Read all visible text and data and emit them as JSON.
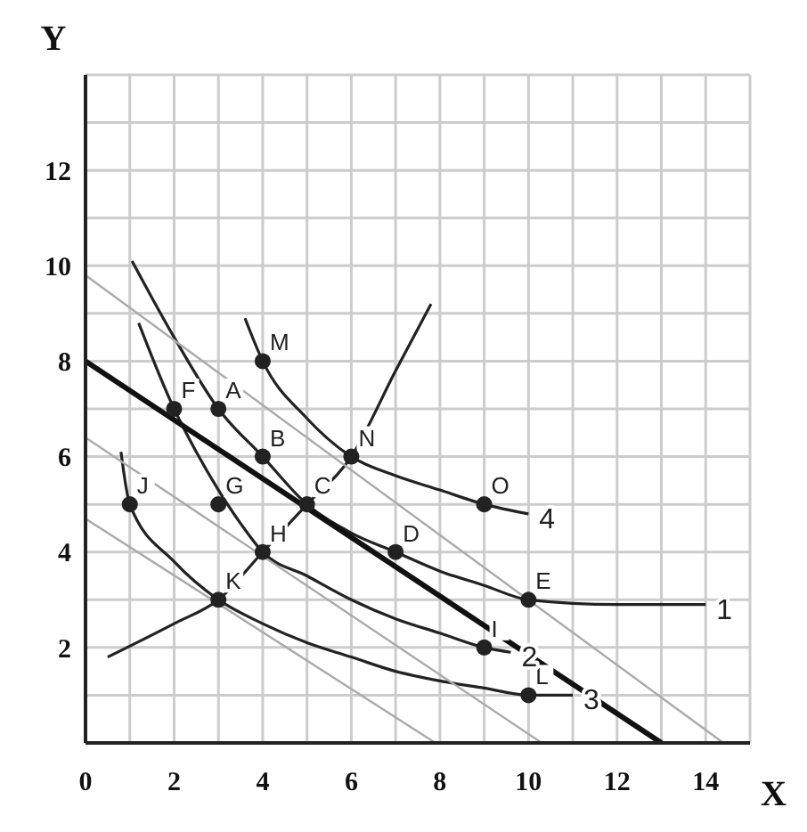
{
  "chart_data": {
    "type": "line",
    "xlabel": "X",
    "ylabel": "Y",
    "xlim": [
      0,
      15
    ],
    "ylim": [
      0,
      14
    ],
    "xticks": [
      0,
      {
        "value": 1,
        "label": null
      },
      2,
      {
        "value": 3,
        "label": null
      },
      4,
      {
        "value": 5,
        "label": null
      },
      6,
      {
        "value": 7,
        "label": null
      },
      8,
      {
        "value": 9,
        "label": null
      },
      10,
      {
        "value": 11,
        "label": null
      },
      12,
      {
        "value": 13,
        "label": null
      },
      14,
      {
        "value": 15,
        "label": null
      }
    ],
    "yticks": [
      {
        "value": 0,
        "label": null
      },
      {
        "value": 1,
        "label": null
      },
      2,
      {
        "value": 3,
        "label": null
      },
      4,
      {
        "value": 5,
        "label": null
      },
      6,
      {
        "value": 7,
        "label": null
      },
      8,
      {
        "value": 9,
        "label": null
      },
      10,
      {
        "value": 11,
        "label": null
      },
      12,
      {
        "value": 13,
        "label": null
      },
      {
        "value": 14,
        "label": null
      }
    ],
    "grid": true,
    "legend": false,
    "marker": "none",
    "line_style": "solid",
    "tick_labels": "xy",
    "series": [
      {
        "name": "1",
        "color": "#222222",
        "x": [
          1.05,
          2,
          3,
          4,
          5,
          6,
          7,
          8,
          9,
          10,
          12,
          14
        ],
        "values": [
          10.1,
          8.5,
          7,
          6,
          5,
          4.4,
          4,
          3.6,
          3.3,
          3,
          2.9,
          2.9
        ]
      },
      {
        "name": "2",
        "color": "#222222",
        "x": [
          1.2,
          2,
          2.5,
          3,
          3.5,
          4,
          5,
          6,
          7,
          8,
          9,
          9.6
        ],
        "values": [
          8.8,
          7,
          6.1,
          5.3,
          4.6,
          4,
          3.5,
          3,
          2.6,
          2.3,
          2,
          1.9
        ]
      },
      {
        "name": "3",
        "color": "#222222",
        "x": [
          0.8,
          1,
          2,
          3,
          4,
          5,
          6,
          7,
          8,
          9,
          10,
          11
        ],
        "values": [
          6.1,
          5,
          3.8,
          3,
          2.5,
          2.1,
          1.8,
          1.5,
          1.3,
          1.15,
          1,
          1
        ]
      },
      {
        "name": "4",
        "color": "#222222",
        "x": [
          3.6,
          4,
          5,
          6,
          7,
          8,
          9,
          10
        ],
        "values": [
          8.9,
          8,
          6.8,
          6,
          5.6,
          5.3,
          5,
          4.8
        ]
      },
      {
        "color": "#222222",
        "x": [
          0.5,
          2,
          3,
          4,
          5,
          6,
          7,
          7.8
        ],
        "values": [
          1.8,
          2.5,
          3,
          4,
          5,
          6,
          7.8,
          9.2
        ]
      },
      {
        "color": "#111111",
        "x": [
          0,
          13
        ],
        "values": [
          8,
          0
        ]
      },
      {
        "color": "#aaaaaa",
        "x": [
          0,
          14.4
        ],
        "values": [
          9.8,
          0
        ]
      },
      {
        "color": "#aaaaaa",
        "x": [
          0,
          10.3
        ],
        "values": [
          6.4,
          0
        ]
      },
      {
        "color": "#aaaaaa",
        "x": [
          0,
          7.9
        ],
        "values": [
          4.7,
          0
        ]
      },
      {
        "type": "scatter",
        "marker": "circle",
        "color": "#222222",
        "x": [
          3,
          4,
          5,
          7,
          10,
          2,
          3,
          4,
          9,
          1,
          3,
          10,
          4,
          6,
          9
        ],
        "values": [
          7,
          6,
          5,
          4,
          3,
          7,
          5,
          4,
          2,
          5,
          3,
          1,
          8,
          6,
          5
        ]
      }
    ],
    "annotations": [
      {
        "text": "A",
        "x": 3,
        "y": 7
      },
      {
        "text": "B",
        "x": 4,
        "y": 6
      },
      {
        "text": "C",
        "x": 5,
        "y": 5
      },
      {
        "text": "D",
        "x": 7,
        "y": 4
      },
      {
        "text": "E",
        "x": 10,
        "y": 3
      },
      {
        "text": "F",
        "x": 2,
        "y": 7
      },
      {
        "text": "G",
        "x": 3,
        "y": 5
      },
      {
        "text": "H",
        "x": 4,
        "y": 4
      },
      {
        "text": "I",
        "x": 9,
        "y": 2
      },
      {
        "text": "J",
        "x": 1,
        "y": 5
      },
      {
        "text": "K",
        "x": 3,
        "y": 3
      },
      {
        "text": "L",
        "x": 10,
        "y": 1
      },
      {
        "text": "M",
        "x": 4,
        "y": 8
      },
      {
        "text": "N",
        "x": 6,
        "y": 6
      },
      {
        "text": "O",
        "x": 9,
        "y": 5
      }
    ]
  }
}
